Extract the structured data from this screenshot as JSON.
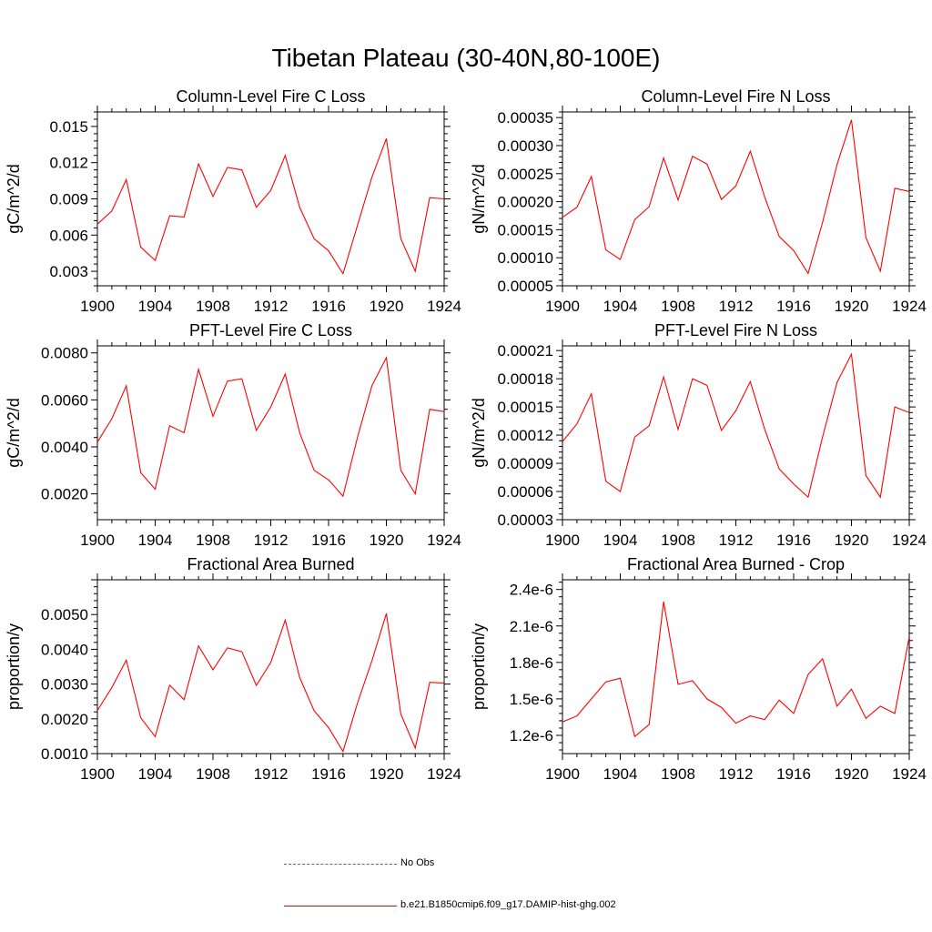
{
  "figure": {
    "title": "Tibetan Plateau (30-40N,80-100E)"
  },
  "legend": [
    {
      "label": "No Obs",
      "style": "dashed",
      "color": "#5a5acd"
    },
    {
      "label": "b.e21.B1850cmip6.f09_g17.DAMIP-hist-ghg.002",
      "style": "solid",
      "color": "#ff0000"
    }
  ],
  "chart_data": [
    {
      "type": "line",
      "title": "Column-Level Fire C Loss",
      "ylabel": "gC/m^2/d",
      "xlabel": "",
      "xlim": [
        1900,
        1924
      ],
      "ylim": [
        0.0018,
        0.0162
      ],
      "xticks": [
        "1900",
        "1904",
        "1908",
        "1912",
        "1916",
        "1920",
        "1924"
      ],
      "yticks": [
        "0.003",
        "0.006",
        "0.009",
        "0.012",
        "0.015"
      ],
      "x": [
        1900,
        1901,
        1902,
        1903,
        1904,
        1905,
        1906,
        1907,
        1908,
        1909,
        1910,
        1911,
        1912,
        1913,
        1914,
        1915,
        1916,
        1917,
        1918,
        1919,
        1920,
        1921,
        1922,
        1923,
        1924
      ],
      "series": [
        {
          "color": "#ff0000",
          "values": [
            0.0069,
            0.008,
            0.0106,
            0.005,
            0.0039,
            0.0076,
            0.0075,
            0.0119,
            0.0092,
            0.0116,
            0.0114,
            0.0083,
            0.0097,
            0.0126,
            0.0083,
            0.0057,
            0.0047,
            0.0028,
            0.0068,
            0.0108,
            0.014,
            0.0057,
            0.003,
            0.0091,
            0.009
          ]
        }
      ]
    },
    {
      "type": "line",
      "title": "Column-Level Fire N Loss",
      "ylabel": "gN/m^2/d",
      "xlabel": "",
      "xlim": [
        1900,
        1924
      ],
      "ylim": [
        5e-05,
        0.00036
      ],
      "xticks": [
        "1900",
        "1904",
        "1908",
        "1912",
        "1916",
        "1920",
        "1924"
      ],
      "yticks": [
        "0.00005",
        "0.00010",
        "0.00015",
        "0.00020",
        "0.00025",
        "0.00030",
        "0.00035"
      ],
      "x": [
        1900,
        1901,
        1902,
        1903,
        1904,
        1905,
        1906,
        1907,
        1908,
        1909,
        1910,
        1911,
        1912,
        1913,
        1914,
        1915,
        1916,
        1917,
        1918,
        1919,
        1920,
        1921,
        1922,
        1923,
        1924
      ],
      "series": [
        {
          "color": "#ff0000",
          "values": [
            0.000172,
            0.00019,
            0.000245,
            0.000114,
            9.7e-05,
            0.000168,
            0.000191,
            0.000278,
            0.000203,
            0.000281,
            0.000267,
            0.000204,
            0.000228,
            0.00029,
            0.000208,
            0.000138,
            0.000113,
            7.2e-05,
            0.000163,
            0.000266,
            0.000346,
            0.000136,
            7.6e-05,
            0.000224,
            0.000218
          ]
        }
      ]
    },
    {
      "type": "line",
      "title": "PFT-Level Fire C Loss",
      "ylabel": "gC/m^2/d",
      "xlabel": "",
      "xlim": [
        1900,
        1924
      ],
      "ylim": [
        0.0009,
        0.0083
      ],
      "xticks": [
        "1900",
        "1904",
        "1908",
        "1912",
        "1916",
        "1920",
        "1924"
      ],
      "yticks": [
        "0.0020",
        "0.0040",
        "0.0060",
        "0.0080"
      ],
      "x": [
        1900,
        1901,
        1902,
        1903,
        1904,
        1905,
        1906,
        1907,
        1908,
        1909,
        1910,
        1911,
        1912,
        1913,
        1914,
        1915,
        1916,
        1917,
        1918,
        1919,
        1920,
        1921,
        1922,
        1923,
        1924
      ],
      "series": [
        {
          "color": "#ff0000",
          "values": [
            0.0042,
            0.0052,
            0.0066,
            0.0029,
            0.0022,
            0.0049,
            0.0046,
            0.0073,
            0.0053,
            0.0068,
            0.0069,
            0.0047,
            0.0057,
            0.0071,
            0.0046,
            0.003,
            0.0026,
            0.0019,
            0.0044,
            0.0066,
            0.0078,
            0.003,
            0.002,
            0.0056,
            0.0055
          ]
        }
      ]
    },
    {
      "type": "line",
      "title": "PFT-Level Fire N Loss",
      "ylabel": "gN/m^2/d",
      "xlabel": "",
      "xlim": [
        1900,
        1924
      ],
      "ylim": [
        3e-05,
        0.000215
      ],
      "xticks": [
        "1900",
        "1904",
        "1908",
        "1912",
        "1916",
        "1920",
        "1924"
      ],
      "yticks": [
        "0.00003",
        "0.00006",
        "0.00009",
        "0.00012",
        "0.00015",
        "0.00018",
        "0.00021"
      ],
      "x": [
        1900,
        1901,
        1902,
        1903,
        1904,
        1905,
        1906,
        1907,
        1908,
        1909,
        1910,
        1911,
        1912,
        1913,
        1914,
        1915,
        1916,
        1917,
        1918,
        1919,
        1920,
        1921,
        1922,
        1923,
        1924
      ],
      "series": [
        {
          "color": "#ff0000",
          "values": [
            0.000113,
            0.000132,
            0.000164,
            7.1e-05,
            6e-05,
            0.000118,
            0.00013,
            0.000182,
            0.000126,
            0.00018,
            0.000173,
            0.000125,
            0.000146,
            0.000177,
            0.000126,
            8.4e-05,
            6.8e-05,
            5.4e-05,
            0.000118,
            0.000176,
            0.000206,
            7.7e-05,
            5.4e-05,
            0.00015,
            0.000144
          ]
        }
      ]
    },
    {
      "type": "line",
      "title": "Fractional Area Burned",
      "ylabel": "proportion/y",
      "xlabel": "",
      "xlim": [
        1900,
        1924
      ],
      "ylim": [
        0.001,
        0.006
      ],
      "xticks": [
        "1900",
        "1904",
        "1908",
        "1912",
        "1916",
        "1920",
        "1924"
      ],
      "yticks": [
        "0.0010",
        "0.0020",
        "0.0030",
        "0.0040",
        "0.0050"
      ],
      "x": [
        1900,
        1901,
        1902,
        1903,
        1904,
        1905,
        1906,
        1907,
        1908,
        1909,
        1910,
        1911,
        1912,
        1913,
        1914,
        1915,
        1916,
        1917,
        1918,
        1919,
        1920,
        1921,
        1922,
        1923,
        1924
      ],
      "series": [
        {
          "color": "#ff0000",
          "values": [
            0.00224,
            0.0029,
            0.00369,
            0.00203,
            0.00149,
            0.00297,
            0.00255,
            0.0041,
            0.00341,
            0.00404,
            0.00393,
            0.00296,
            0.00362,
            0.00484,
            0.00319,
            0.00223,
            0.00175,
            0.00106,
            0.00245,
            0.00367,
            0.00503,
            0.00214,
            0.00116,
            0.00305,
            0.00303
          ]
        }
      ]
    },
    {
      "type": "line",
      "title": "Fractional Area Burned - Crop",
      "ylabel": "proportion/y",
      "xlabel": "",
      "xlim": [
        1900,
        1924
      ],
      "ylim": [
        1.05e-06,
        2.48e-06
      ],
      "xticks": [
        "1900",
        "1904",
        "1908",
        "1912",
        "1916",
        "1920",
        "1924"
      ],
      "yticks": [
        "1.2e-6",
        "1.5e-6",
        "1.8e-6",
        "2.1e-6",
        "2.4e-6"
      ],
      "x": [
        1900,
        1901,
        1902,
        1903,
        1904,
        1905,
        1906,
        1907,
        1908,
        1909,
        1910,
        1911,
        1912,
        1913,
        1914,
        1915,
        1916,
        1917,
        1918,
        1919,
        1920,
        1921,
        1922,
        1923,
        1924
      ],
      "series": [
        {
          "color": "#ff0000",
          "values": [
            1.31e-06,
            1.36e-06,
            1.5e-06,
            1.64e-06,
            1.67e-06,
            1.19e-06,
            1.29e-06,
            2.3e-06,
            1.62e-06,
            1.65e-06,
            1.5e-06,
            1.43e-06,
            1.3e-06,
            1.36e-06,
            1.33e-06,
            1.49e-06,
            1.38e-06,
            1.7e-06,
            1.83e-06,
            1.44e-06,
            1.58e-06,
            1.34e-06,
            1.44e-06,
            1.38e-06,
            2.01e-06
          ]
        }
      ]
    }
  ]
}
